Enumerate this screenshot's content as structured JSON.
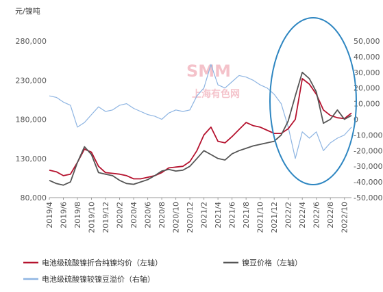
{
  "chart_data": {
    "type": "line",
    "unit_label": "元/镍吨",
    "watermark": {
      "brand": "SMM",
      "sub": "上海有色网"
    },
    "left_axis": {
      "ticks": [
        80000,
        130000,
        180000,
        230000,
        280000
      ],
      "ylim": [
        80000,
        280000
      ]
    },
    "right_axis": {
      "ticks": [
        -50000,
        -40000,
        -30000,
        -20000,
        -10000,
        0,
        10000,
        20000,
        30000,
        40000,
        50000
      ],
      "ylim": [
        -50000,
        50000
      ]
    },
    "x_ticks": [
      "2019/4",
      "2019/6",
      "2019/8",
      "2019/10",
      "2019/12",
      "2020/2",
      "2020/4",
      "2020/6",
      "2020/8",
      "2020/10",
      "2020/12",
      "2021/2",
      "2021/4",
      "2021/6",
      "2021/8",
      "2021/10",
      "2021/12",
      "2022/2",
      "2022/4",
      "2022/6",
      "2022/8",
      "2022/10"
    ],
    "series": [
      {
        "name": "电池级硫酸镍折合纯镍均价（左轴）",
        "axis": "left",
        "color": "#b5122e",
        "x": [
          "2019/4",
          "2019/5",
          "2019/6",
          "2019/7",
          "2019/8",
          "2019/9",
          "2019/10",
          "2019/11",
          "2019/12",
          "2020/1",
          "2020/2",
          "2020/3",
          "2020/4",
          "2020/5",
          "2020/6",
          "2020/7",
          "2020/8",
          "2020/9",
          "2020/10",
          "2020/11",
          "2020/12",
          "2021/1",
          "2021/2",
          "2021/3",
          "2021/4",
          "2021/5",
          "2021/6",
          "2021/7",
          "2021/8",
          "2021/9",
          "2021/10",
          "2021/11",
          "2021/12",
          "2022/1",
          "2022/2",
          "2022/3",
          "2022/4",
          "2022/5",
          "2022/6",
          "2022/7",
          "2022/8",
          "2022/9",
          "2022/10",
          "2022/11"
        ],
        "values": [
          115000,
          113000,
          108000,
          110000,
          125000,
          142000,
          138000,
          120000,
          112000,
          111000,
          110000,
          108000,
          104000,
          104000,
          106000,
          108000,
          112000,
          118000,
          119000,
          120000,
          126000,
          140000,
          160000,
          170000,
          152000,
          150000,
          158000,
          167000,
          176000,
          172000,
          170000,
          166000,
          162000,
          162000,
          168000,
          180000,
          232000,
          225000,
          212000,
          192000,
          185000,
          182000,
          181000,
          188000
        ]
      },
      {
        "name": "镍豆价格（左轴）",
        "axis": "left",
        "color": "#555555",
        "x": [
          "2019/4",
          "2019/5",
          "2019/6",
          "2019/7",
          "2019/8",
          "2019/9",
          "2019/10",
          "2019/11",
          "2019/12",
          "2020/1",
          "2020/2",
          "2020/3",
          "2020/4",
          "2020/5",
          "2020/6",
          "2020/7",
          "2020/8",
          "2020/9",
          "2020/10",
          "2020/11",
          "2020/12",
          "2021/1",
          "2021/2",
          "2021/3",
          "2021/4",
          "2021/5",
          "2021/6",
          "2021/7",
          "2021/8",
          "2021/9",
          "2021/10",
          "2021/11",
          "2021/12",
          "2022/1",
          "2022/2",
          "2022/3",
          "2022/4",
          "2022/5",
          "2022/6",
          "2022/7",
          "2022/8",
          "2022/9",
          "2022/10",
          "2022/11"
        ],
        "values": [
          102000,
          98000,
          96000,
          100000,
          125000,
          145000,
          135000,
          112000,
          110000,
          108000,
          102000,
          98000,
          97000,
          100000,
          103000,
          108000,
          114000,
          116000,
          114000,
          115000,
          120000,
          130000,
          140000,
          135000,
          130000,
          128000,
          136000,
          140000,
          143000,
          146000,
          148000,
          150000,
          152000,
          160000,
          178000,
          210000,
          240000,
          232000,
          215000,
          175000,
          180000,
          192000,
          180000,
          185000
        ]
      },
      {
        "name": "电池级硫酸镍较镍豆溢价（右轴）",
        "axis": "right",
        "color": "#8db4e2",
        "x": [
          "2019/4",
          "2019/5",
          "2019/6",
          "2019/7",
          "2019/8",
          "2019/9",
          "2019/10",
          "2019/11",
          "2019/12",
          "2020/1",
          "2020/2",
          "2020/3",
          "2020/4",
          "2020/5",
          "2020/6",
          "2020/7",
          "2020/8",
          "2020/9",
          "2020/10",
          "2020/11",
          "2020/12",
          "2021/1",
          "2021/2",
          "2021/3",
          "2021/4",
          "2021/5",
          "2021/6",
          "2021/7",
          "2021/8",
          "2021/9",
          "2021/10",
          "2021/11",
          "2021/12",
          "2022/1",
          "2022/2",
          "2022/3",
          "2022/4",
          "2022/5",
          "2022/6",
          "2022/7",
          "2022/8",
          "2022/9",
          "2022/10",
          "2022/11"
        ],
        "values": [
          15000,
          14000,
          11000,
          9000,
          -5000,
          -2000,
          3000,
          8000,
          5000,
          6000,
          9000,
          10000,
          7000,
          5000,
          3000,
          2000,
          0,
          4000,
          6000,
          5000,
          6000,
          15000,
          20000,
          35000,
          22000,
          20000,
          24000,
          28000,
          27000,
          25000,
          22000,
          20000,
          16000,
          10000,
          -5000,
          -25000,
          -8000,
          -12000,
          -8000,
          -20000,
          -15000,
          -12000,
          -10000,
          -5000
        ]
      }
    ]
  }
}
